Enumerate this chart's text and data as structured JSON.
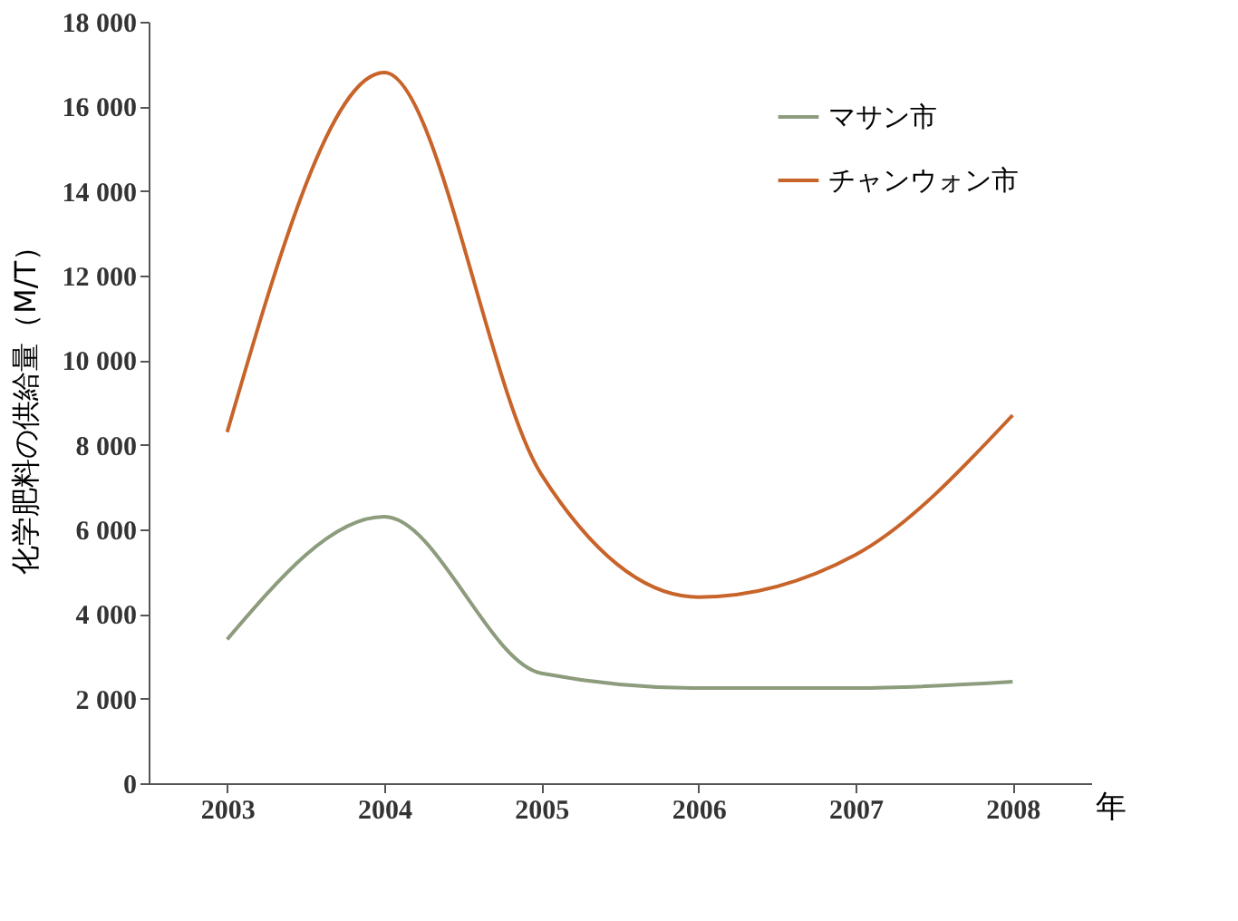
{
  "chart_data": {
    "type": "line",
    "xlabel": "年",
    "ylabel": "化学肥料の供給量（M/T）",
    "categories": [
      "2003",
      "2004",
      "2005",
      "2006",
      "2007",
      "2008"
    ],
    "series": [
      {
        "name": "マサン市",
        "color": "#8c9c7c",
        "values": [
          3400,
          6300,
          2600,
          2250,
          2250,
          2400
        ]
      },
      {
        "name": "チャンウォン市",
        "color": "#c8642a",
        "values": [
          8300,
          16800,
          7300,
          4400,
          5400,
          8700
        ]
      }
    ],
    "ylim": [
      0,
      18000
    ],
    "yticks": [
      0,
      {
        "value": 2000,
        "label": "2 000"
      },
      {
        "value": 4000,
        "label": "4 000"
      },
      {
        "value": 6000,
        "label": "6 000"
      },
      {
        "value": 8000,
        "label": "8 000"
      },
      {
        "value": 10000,
        "label": "10 000"
      },
      {
        "value": 12000,
        "label": "12 000"
      },
      {
        "value": 14000,
        "label": "14 000"
      },
      {
        "value": 16000,
        "label": "16 000"
      },
      {
        "value": 18000,
        "label": "18 000"
      }
    ],
    "grid": false,
    "legend": "top right",
    "marker": "none",
    "line_style": "solid"
  }
}
